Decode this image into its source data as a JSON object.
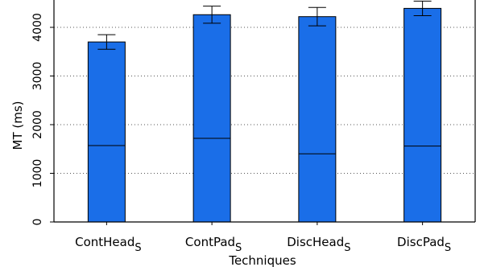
{
  "chart_data": {
    "type": "bar",
    "title": "",
    "xlabel": "Techniques",
    "ylabel": "MT (ms)",
    "ylim": [
      0,
      4600
    ],
    "yticks": [
      0,
      1000,
      2000,
      3000,
      4000
    ],
    "grid": "horizontal-dotted",
    "categories": [
      {
        "base": "ContHead",
        "sub": "S"
      },
      {
        "base": "ContPad",
        "sub": "S"
      },
      {
        "base": "DiscHead",
        "sub": "S"
      },
      {
        "base": "DiscPad",
        "sub": "S"
      }
    ],
    "values": [
      3700,
      4260,
      4220,
      4390
    ],
    "error": [
      150,
      175,
      190,
      150
    ],
    "inner_segment": [
      1570,
      1720,
      1400,
      1560
    ],
    "colors": {
      "bar": "#1a6ee8",
      "stroke": "#000000",
      "grid": "#555555"
    }
  }
}
